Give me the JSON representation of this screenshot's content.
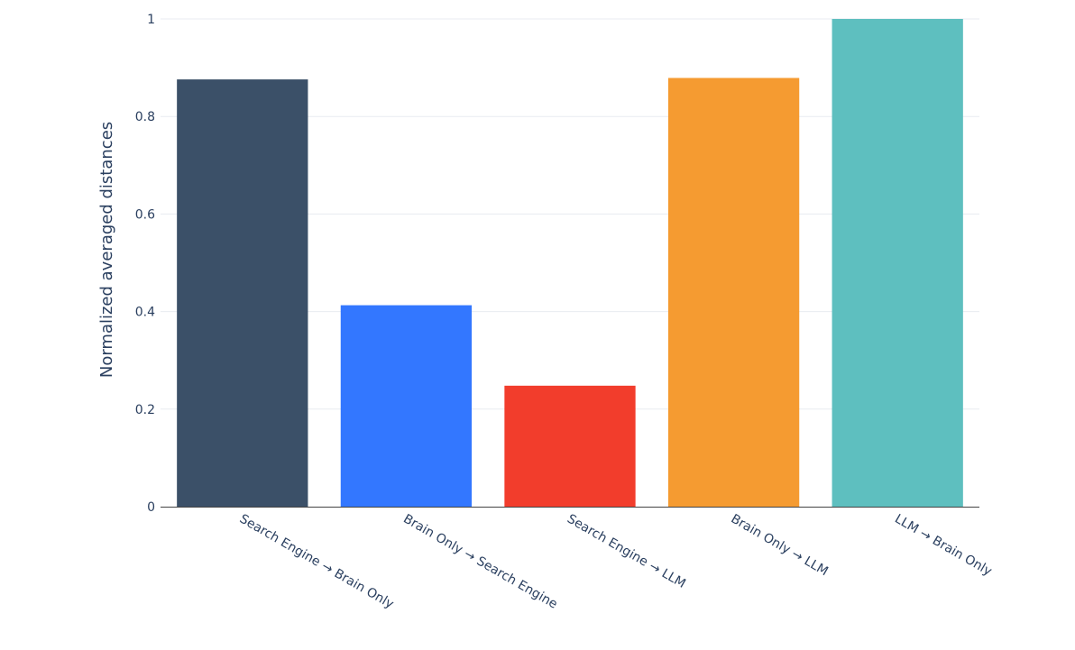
{
  "chart_data": {
    "type": "bar",
    "categories": [
      "Search Engine → Brain Only",
      "Brain Only → Search Engine",
      "Search Engine → LLM",
      "Brain Only → LLM",
      "LLM → Brain Only"
    ],
    "values": [
      0.876,
      0.413,
      0.248,
      0.879,
      1.0
    ],
    "colors": [
      "#3b5068",
      "#3377ff",
      "#f23d2c",
      "#f59b31",
      "#5ebfbf"
    ],
    "title": "",
    "xlabel": "",
    "ylabel": "Normalized averaged distances",
    "ylim": [
      0,
      1
    ],
    "yticks": [
      0,
      0.2,
      0.4,
      0.6,
      0.8,
      1
    ],
    "ytick_labels": [
      "0",
      "0.2",
      "0.4",
      "0.6",
      "0.8",
      "1"
    ],
    "grid": true,
    "legend": "none"
  }
}
